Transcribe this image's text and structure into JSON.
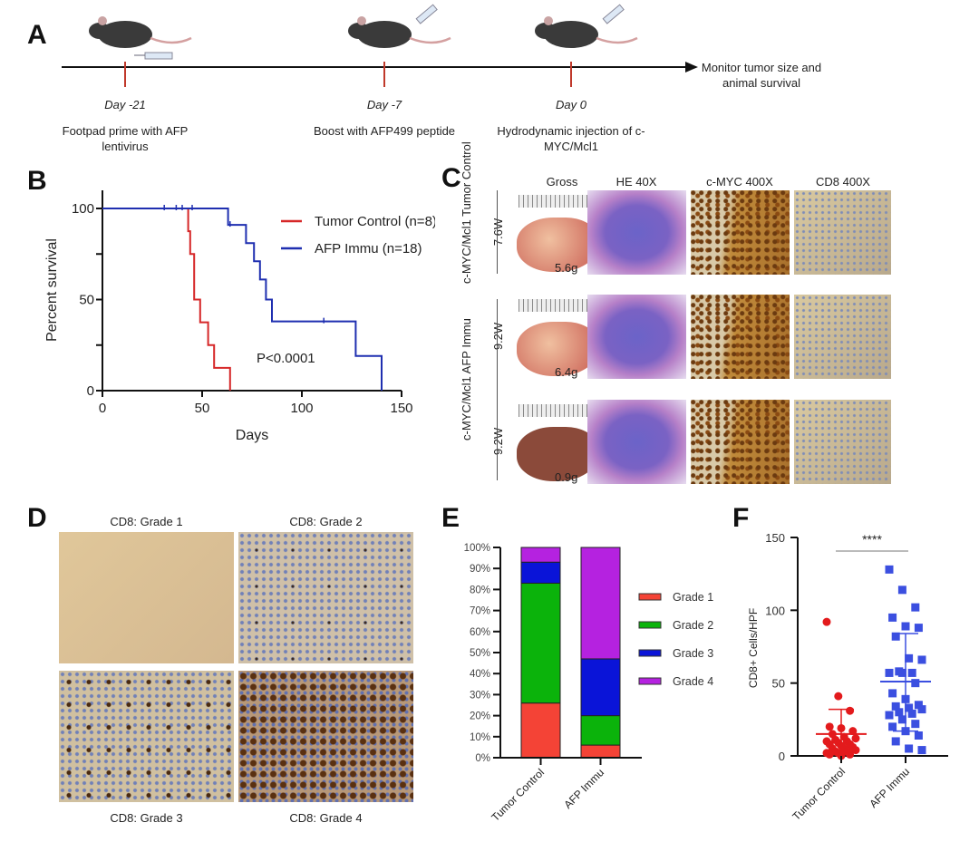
{
  "panel_labels": [
    "A",
    "B",
    "C",
    "D",
    "E",
    "F"
  ],
  "panel_a": {
    "timeline": [
      {
        "day": "Day -21",
        "desc": "Footpad prime with AFP lentivirus"
      },
      {
        "day": "Day -7",
        "desc": "Boost with AFP499 peptide"
      },
      {
        "day": "Day 0",
        "desc": "Hydrodynamic injection of c-MYC/Mcl1"
      }
    ],
    "end_label": "Monitor tumor size and animal survival",
    "colors": {
      "tick": "#c0392b",
      "mouse": "#3a3a3a"
    }
  },
  "panel_c": {
    "columns": [
      "Gross",
      "HE 40X",
      "c-MYC 400X",
      "CD8 400X"
    ],
    "groups": [
      "c-MYC/Mcl1 Tumor Control",
      "c-MYC/Mcl1 AFP Immu"
    ],
    "rows": [
      {
        "week": "7.6W",
        "weight": "5.6g"
      },
      {
        "week": "9.2W",
        "weight": "6.4g"
      },
      {
        "week": "9.2W",
        "weight": "0.9g"
      }
    ]
  },
  "panel_d": {
    "labels": [
      "CD8: Grade 1",
      "CD8: Grade 2",
      "CD8: Grade 3",
      "CD8: Grade 4"
    ]
  },
  "chart_data": [
    {
      "panel": "B",
      "type": "line",
      "xlabel": "Days",
      "ylabel": "Percent survival",
      "xlim": [
        0,
        150
      ],
      "ylim": [
        0,
        100
      ],
      "xticks": [
        0,
        50,
        100,
        150
      ],
      "yticks": [
        0,
        50,
        100
      ],
      "annotation": "P<0.0001",
      "legend_position": "top-right",
      "series": [
        {
          "name": "Tumor Control (n=8)",
          "color": "#d62728",
          "steps": [
            [
              0,
              100
            ],
            [
              43,
              87.5
            ],
            [
              44,
              75
            ],
            [
              46,
              50
            ],
            [
              49,
              37.5
            ],
            [
              53,
              25
            ],
            [
              56,
              12.5
            ],
            [
              64,
              0
            ]
          ],
          "censored": []
        },
        {
          "name": "AFP Immu (n=18)",
          "color": "#1f2fb0",
          "steps": [
            [
              0,
              100
            ],
            [
              63,
              91
            ],
            [
              72,
              81
            ],
            [
              76,
              71
            ],
            [
              79,
              61
            ],
            [
              82,
              50
            ],
            [
              85,
              38
            ],
            [
              127,
              19
            ],
            [
              140,
              0
            ]
          ],
          "censored": [
            [
              31,
              100
            ],
            [
              37,
              100
            ],
            [
              40,
              100
            ],
            [
              45,
              100
            ],
            [
              64,
              91
            ],
            [
              111,
              38
            ]
          ]
        }
      ]
    },
    {
      "panel": "E",
      "type": "bar",
      "stacked": true,
      "categories": [
        "Tumor Control",
        "AFP Immu"
      ],
      "yticks": [
        "0%",
        "10%",
        "20%",
        "30%",
        "40%",
        "50%",
        "60%",
        "70%",
        "80%",
        "90%",
        "100%"
      ],
      "ylim": [
        0,
        100
      ],
      "legend_position": "right",
      "series": [
        {
          "name": "Grade 1",
          "color": "#f44336",
          "values": [
            26,
            6
          ]
        },
        {
          "name": "Grade 2",
          "color": "#0bb30b",
          "values": [
            57,
            14
          ]
        },
        {
          "name": "Grade 3",
          "color": "#0a14d8",
          "values": [
            10,
            27
          ]
        },
        {
          "name": "Grade 4",
          "color": "#b522e0",
          "values": [
            7,
            53
          ]
        }
      ]
    },
    {
      "panel": "F",
      "type": "scatter",
      "ylabel": "CD8+ Cells/HPF",
      "ylim": [
        0,
        150
      ],
      "yticks": [
        0,
        50,
        100,
        150
      ],
      "categories": [
        "Tumor Control",
        "AFP Immu"
      ],
      "significance": "****",
      "series": [
        {
          "name": "Tumor Control",
          "color": "#e31a1c",
          "marker": "circle",
          "mean": 15,
          "sd": [
            0,
            32
          ],
          "values": [
            92,
            41,
            31,
            20,
            19,
            17,
            15,
            13,
            12,
            11,
            10,
            10,
            9,
            8,
            8,
            7,
            6,
            5,
            5,
            4,
            3,
            3,
            2,
            2,
            1,
            1,
            0
          ]
        },
        {
          "name": "AFP Immu",
          "color": "#3b4fe0",
          "marker": "square",
          "mean": 51,
          "sd": [
            17,
            84
          ],
          "values": [
            128,
            114,
            102,
            95,
            89,
            88,
            82,
            67,
            66,
            58,
            57,
            57,
            57,
            50,
            43,
            39,
            35,
            34,
            33,
            32,
            30,
            29,
            28,
            25,
            22,
            20,
            17,
            14,
            10,
            5,
            4
          ]
        }
      ]
    }
  ]
}
